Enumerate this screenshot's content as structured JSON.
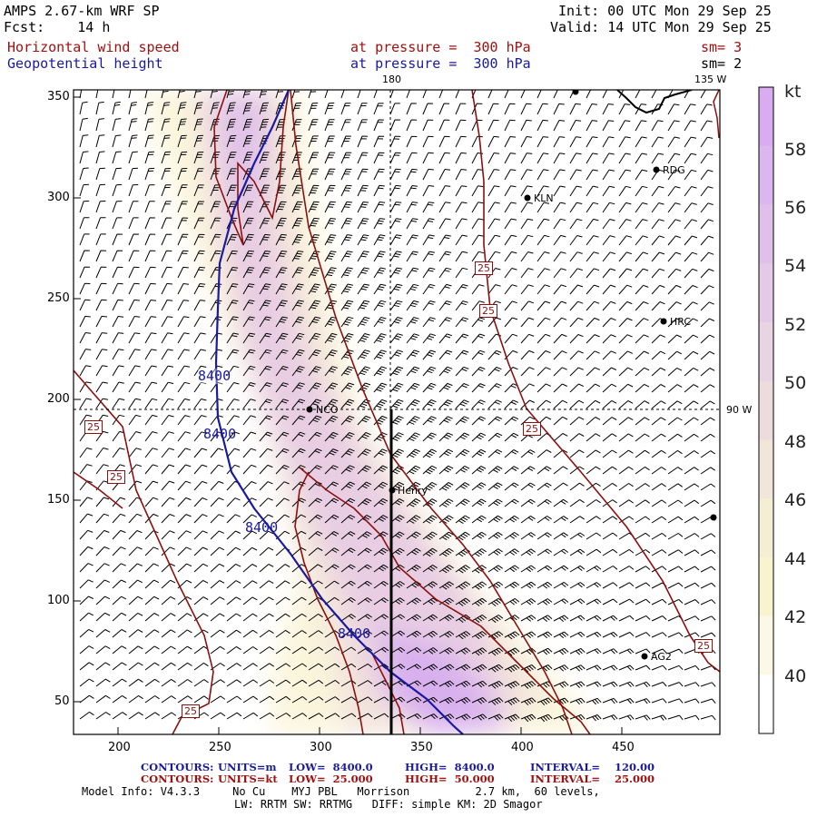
{
  "header": {
    "line1_left": "AMPS 2.67-km WRF SP",
    "line2_left": "Fcst:    14 h",
    "line1_right": "Init: 00 UTC Mon 29 Sep 25",
    "line2_right": "Valid: 14 UTC Mon 29 Sep 25",
    "field1_name": "Horizontal wind speed",
    "field1_level": "at pressure =  300 hPa",
    "field1_sm": "sm= 3",
    "field2_name": "Geopotential height",
    "field2_level": "at pressure =  300 hPa",
    "field2_sm": "sm= 2"
  },
  "map": {
    "x_ticks": [
      "200",
      "250",
      "300",
      "350",
      "400",
      "450"
    ],
    "y_ticks": [
      "350",
      "300",
      "250",
      "200",
      "150",
      "100",
      "50"
    ],
    "meridian_180": "180",
    "meridian_135w": "135 W",
    "meridian_90w": "90 W",
    "stations": [
      {
        "name": "KLN"
      },
      {
        "name": "RDG"
      },
      {
        "name": "HRC"
      },
      {
        "name": "NCO"
      },
      {
        "name": "Henry"
      },
      {
        "name": "AG2"
      }
    ],
    "height_contour_label": "8400",
    "speed_contour_label": "25"
  },
  "colorbar": {
    "unit": "kt",
    "labels": [
      "58",
      "56",
      "54",
      "52",
      "50",
      "48",
      "46",
      "44",
      "42",
      "40"
    ],
    "colors": [
      "#d9acf2",
      "#dcb6ee",
      "#e0c0ea",
      "#e4cae6",
      "#e8d4e2",
      "#ecdcde",
      "#f0e6da",
      "#f4eed4",
      "#f8f4d0",
      "#fcf8e6",
      "#ffffff"
    ]
  },
  "footer": {
    "c1_label": "CONTOURS:",
    "c1_units": "UNITS=m",
    "c1_low": "LOW=  8400.0",
    "c1_high": "HIGH=  8400.0",
    "c1_interval": "INTERVAL=    120.00",
    "c2_label": "CONTOURS:",
    "c2_units": "UNITS=kt",
    "c2_low": "LOW=  25.000",
    "c2_high": "HIGH=  50.000",
    "c2_interval": "INTERVAL=    25.000",
    "model_info": "Model Info: V4.3.3     No Cu    MYJ PBL   Morrison          2.7 km,  60 levels,",
    "model_info2": "LW: RRTM SW: RRTMG   DIFF: simple KM: 2D Smagor"
  },
  "colors": {
    "height_contour": "#1a1aa0",
    "speed_contour": "#8b1010",
    "text_red": "#a01010",
    "text_blue": "#1a1aa0"
  }
}
